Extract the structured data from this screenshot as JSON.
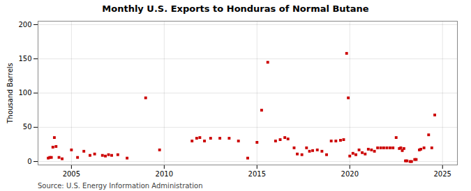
{
  "chart_data": {
    "type": "scatter",
    "title": "Monthly U.S. Exports to Honduras of Normal Butane",
    "ylabel": "Thousand Barrels",
    "source": "Source: U.S. Energy Information Administration",
    "color": "#cc0000",
    "marker": "square",
    "grid": true,
    "xlim": [
      2003.2,
      2025.8
    ],
    "ylim": [
      -5,
      205
    ],
    "xticks": [
      2005,
      2010,
      2015,
      2020,
      2025
    ],
    "yticks": [
      0,
      50,
      100,
      150,
      200
    ],
    "x": [
      2003.75,
      2003.83,
      2003.92,
      2004.0,
      2004.08,
      2004.17,
      2004.33,
      2004.5,
      2005.0,
      2005.33,
      2005.67,
      2006.0,
      2006.25,
      2006.67,
      2006.83,
      2007.0,
      2007.17,
      2007.5,
      2008.0,
      2009.0,
      2009.75,
      2011.5,
      2011.75,
      2011.92,
      2012.17,
      2012.5,
      2013.0,
      2013.5,
      2014.0,
      2014.5,
      2015.0,
      2015.25,
      2015.58,
      2016.0,
      2016.25,
      2016.5,
      2016.67,
      2017.0,
      2017.17,
      2017.42,
      2017.67,
      2017.83,
      2018.0,
      2018.25,
      2018.5,
      2018.75,
      2019.0,
      2019.25,
      2019.5,
      2019.67,
      2019.83,
      2019.92,
      2020.0,
      2020.17,
      2020.33,
      2020.5,
      2020.67,
      2020.83,
      2021.0,
      2021.17,
      2021.33,
      2021.5,
      2021.67,
      2021.83,
      2022.0,
      2022.17,
      2022.33,
      2022.5,
      2022.67,
      2022.75,
      2022.83,
      2022.92,
      2023.0,
      2023.08,
      2023.25,
      2023.33,
      2023.5,
      2023.58,
      2023.75,
      2023.83,
      2024.0,
      2024.25,
      2024.42,
      2024.58
    ],
    "values": [
      5,
      6,
      6,
      21,
      35,
      22,
      6,
      4,
      17,
      6,
      15,
      9,
      11,
      9,
      8,
      10,
      9,
      10,
      5,
      93,
      17,
      30,
      34,
      35,
      30,
      34,
      34,
      34,
      30,
      5,
      28,
      75,
      145,
      30,
      32,
      35,
      33,
      20,
      11,
      10,
      20,
      15,
      16,
      17,
      15,
      10,
      30,
      30,
      31,
      32,
      158,
      93,
      8,
      12,
      10,
      17,
      13,
      11,
      18,
      17,
      15,
      20,
      20,
      20,
      20,
      20,
      20,
      35,
      19,
      20,
      16,
      19,
      1,
      1,
      0,
      0,
      3,
      3,
      17,
      18,
      20,
      39,
      20,
      68
    ]
  }
}
